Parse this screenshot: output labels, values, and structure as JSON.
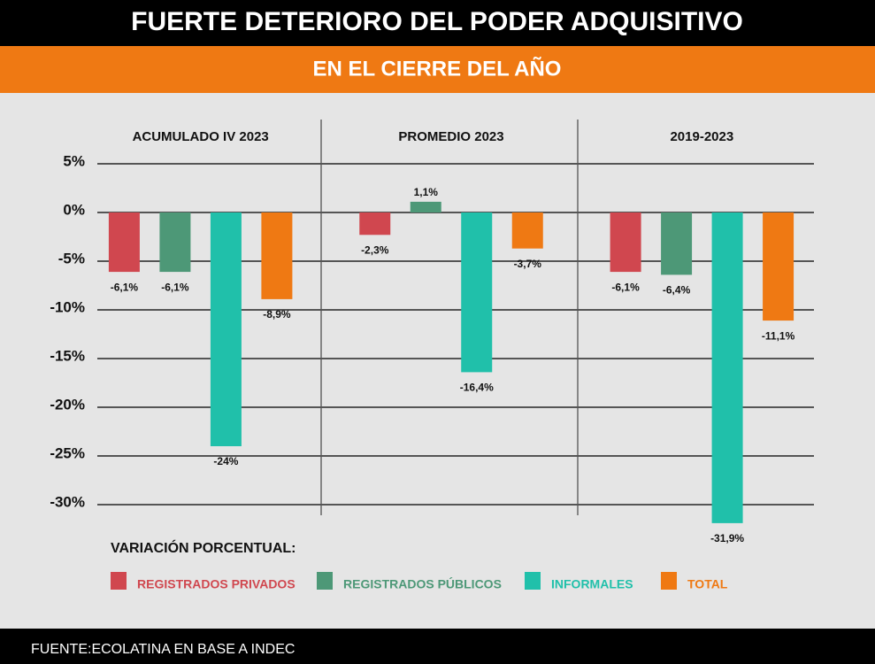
{
  "chart_data": {
    "type": "bar",
    "title": "FUERTE DETERIORO DEL PODER ADQUISITIVO",
    "subtitle": "EN EL CIERRE DEL AÑO",
    "source": "FUENTE:ECOLATINA EN BASE A INDEC",
    "legend_title": "VARIACIÓN PORCENTUAL:",
    "categories": [
      "ACUMULADO IV 2023",
      "PROMEDIO 2023",
      "2019-2023"
    ],
    "series": [
      {
        "name": "REGISTRADOS PRIVADOS",
        "color": "#d0474f",
        "values": [
          -6.1,
          -2.3,
          -6.1
        ],
        "value_labels": [
          "-6,1%",
          "-2,3%",
          "-6,1%"
        ]
      },
      {
        "name": "REGISTRADOS PÚBLICOS",
        "color": "#4d9877",
        "values": [
          -6.1,
          1.1,
          -6.4
        ],
        "value_labels": [
          "-6,1%",
          "1,1%",
          "-6,4%"
        ]
      },
      {
        "name": "INFORMALES",
        "color": "#20c0aa",
        "values": [
          -24,
          -16.4,
          -31.9
        ],
        "value_labels": [
          "-24%",
          "-16,4%",
          "-31,9%"
        ]
      },
      {
        "name": "TOTAL",
        "color": "#ef7913",
        "values": [
          -8.9,
          -3.7,
          -11.1
        ],
        "value_labels": [
          "-8,9%",
          "-3,7%",
          "-11,1%"
        ]
      }
    ],
    "ylim": [
      -32,
      5
    ],
    "yticks": [
      {
        "value": 5,
        "label": "5%"
      },
      {
        "value": 0,
        "label": "0%"
      },
      {
        "value": -5,
        "label": "-5%"
      },
      {
        "value": -10,
        "label": "-10%"
      },
      {
        "value": -15,
        "label": "-15%"
      },
      {
        "value": -20,
        "label": "-20%"
      },
      {
        "value": -25,
        "label": "-25%"
      },
      {
        "value": -30,
        "label": "-30%"
      }
    ],
    "grid": true
  }
}
